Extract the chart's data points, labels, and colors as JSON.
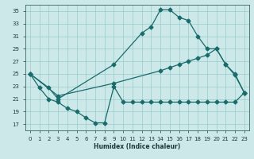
{
  "xlabel": "Humidex (Indice chaleur)",
  "bg_color": "#cce8e8",
  "grid_color": "#99cccc",
  "line_color": "#1a6b6b",
  "xlim": [
    -0.5,
    23.5
  ],
  "ylim": [
    16.0,
    36.0
  ],
  "yticks": [
    17,
    19,
    21,
    23,
    25,
    27,
    29,
    31,
    33,
    35
  ],
  "xticks": [
    0,
    1,
    2,
    3,
    4,
    5,
    6,
    7,
    8,
    9,
    10,
    11,
    12,
    13,
    14,
    15,
    16,
    17,
    18,
    19,
    20,
    21,
    22,
    23
  ],
  "curve_arch_x": [
    0,
    2,
    3,
    9,
    12,
    13,
    14,
    15,
    16,
    17,
    18,
    19,
    20,
    21,
    22,
    23
  ],
  "curve_arch_y": [
    25.0,
    22.8,
    21.0,
    26.5,
    31.5,
    32.5,
    35.2,
    35.2,
    34.0,
    33.5,
    31.0,
    29.0,
    29.0,
    26.5,
    24.8,
    22.0
  ],
  "curve_dip_x": [
    0,
    1,
    2,
    3,
    4,
    5,
    6,
    7,
    8,
    9,
    10,
    11,
    12,
    13,
    14,
    15,
    16,
    17,
    18,
    19,
    20,
    21,
    22,
    23
  ],
  "curve_dip_y": [
    25.0,
    22.8,
    21.0,
    20.5,
    19.5,
    19.0,
    18.0,
    17.2,
    17.2,
    23.0,
    20.5,
    20.5,
    20.5,
    20.5,
    20.5,
    20.5,
    20.5,
    20.5,
    20.5,
    20.5,
    20.5,
    20.5,
    20.5,
    22.0
  ],
  "curve_diag_x": [
    0,
    3,
    9,
    14,
    15,
    16,
    17,
    18,
    19,
    20,
    21,
    22,
    23
  ],
  "curve_diag_y": [
    25.0,
    21.5,
    23.5,
    25.5,
    26.0,
    26.5,
    27.0,
    27.5,
    28.0,
    29.0,
    26.5,
    25.0,
    22.0
  ],
  "markersize": 2.5,
  "linewidth": 0.9
}
